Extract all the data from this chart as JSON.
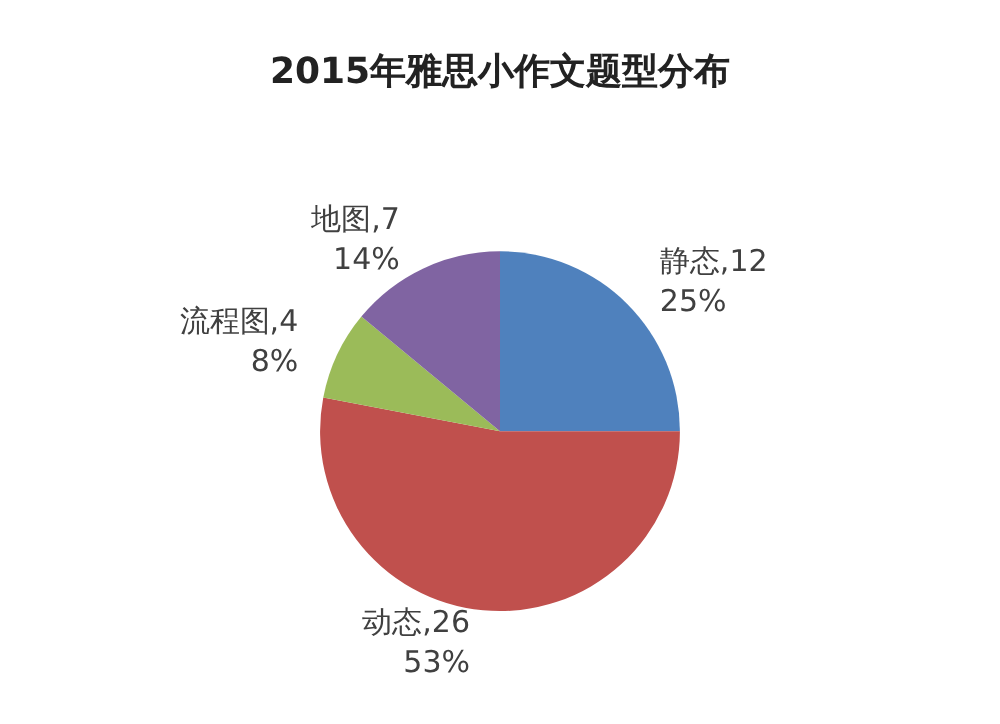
{
  "chart_data": {
    "type": "pie",
    "title": "2015年雅思小作文题型分布",
    "categories": [
      "静态,12",
      "动态,26",
      "流程图,4",
      "地图,7"
    ],
    "values": [
      25,
      53,
      8,
      14
    ],
    "colors": [
      "#4f81bd",
      "#c0504d",
      "#9bbb59",
      "#8064a2"
    ],
    "value_labels": [
      "25%",
      "53%",
      "8%",
      "14%"
    ],
    "legend": false
  }
}
